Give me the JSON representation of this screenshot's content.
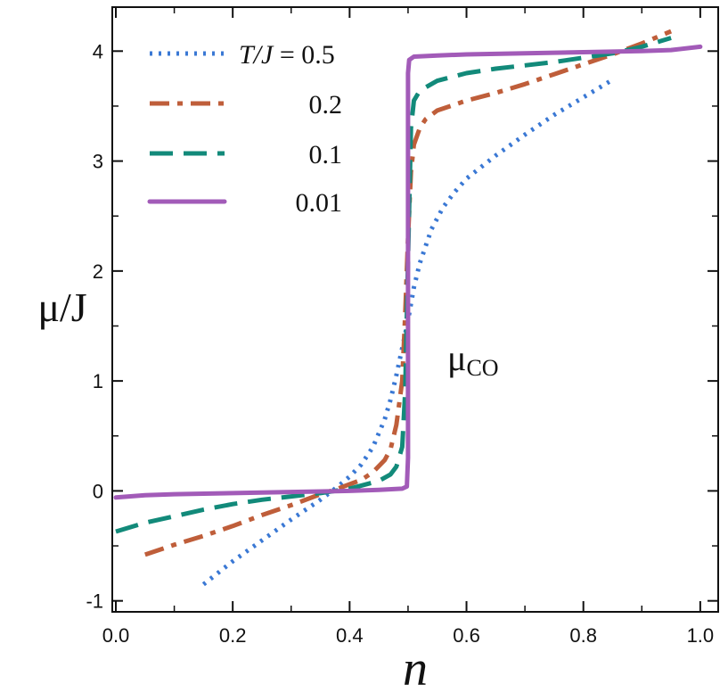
{
  "chart_data": {
    "type": "line",
    "title": "",
    "xlabel": "n",
    "ylabel": "μ/J",
    "xlim": [
      0.0,
      1.0
    ],
    "ylim": [
      -1.1,
      4.4
    ],
    "xticks": [
      0.0,
      0.2,
      0.4,
      0.6,
      0.8,
      1.0
    ],
    "xtick_labels": [
      "0.0",
      "0.2",
      "0.4",
      "0.6",
      "0.8",
      "1.0"
    ],
    "yticks": [
      -1,
      0,
      1,
      2,
      3,
      4
    ],
    "ytick_labels": [
      "-1",
      "0",
      "1",
      "2",
      "3",
      "4"
    ],
    "grid": false,
    "legend_position": "top-left",
    "legend_title": "T/J = ",
    "annotation": {
      "main": "μ",
      "sub": "CO"
    },
    "series": [
      {
        "name": "0.5",
        "color": "#3a78d4",
        "style": "dotted",
        "x": [
          0.15,
          0.2,
          0.25,
          0.3,
          0.35,
          0.38,
          0.4,
          0.42,
          0.44,
          0.46,
          0.47,
          0.48,
          0.49,
          0.5,
          0.51,
          0.52,
          0.54,
          0.56,
          0.58,
          0.6,
          0.65,
          0.7,
          0.75,
          0.8,
          0.85
        ],
        "values": [
          -0.85,
          -0.64,
          -0.45,
          -0.26,
          -0.08,
          0.04,
          0.13,
          0.24,
          0.4,
          0.65,
          0.83,
          1.05,
          1.3,
          1.55,
          1.85,
          2.07,
          2.38,
          2.58,
          2.72,
          2.84,
          3.05,
          3.24,
          3.42,
          3.58,
          3.74
        ]
      },
      {
        "name": "0.2",
        "color": "#bf5e3a",
        "style": "dashdot",
        "x": [
          0.05,
          0.1,
          0.15,
          0.2,
          0.25,
          0.3,
          0.35,
          0.38,
          0.4,
          0.42,
          0.44,
          0.46,
          0.47,
          0.48,
          0.49,
          0.495,
          0.5,
          0.505,
          0.51,
          0.52,
          0.53,
          0.55,
          0.6,
          0.65,
          0.7,
          0.75,
          0.8,
          0.85,
          0.9,
          0.95
        ],
        "values": [
          -0.58,
          -0.49,
          -0.41,
          -0.32,
          -0.22,
          -0.13,
          -0.03,
          0.02,
          0.06,
          0.1,
          0.17,
          0.28,
          0.38,
          0.6,
          1.0,
          1.6,
          2.3,
          2.9,
          3.15,
          3.3,
          3.38,
          3.46,
          3.55,
          3.62,
          3.7,
          3.79,
          3.88,
          3.97,
          4.07,
          4.18
        ]
      },
      {
        "name": "0.1",
        "color": "#128a7a",
        "style": "dashed",
        "x": [
          0.0,
          0.05,
          0.1,
          0.15,
          0.2,
          0.25,
          0.3,
          0.35,
          0.4,
          0.45,
          0.47,
          0.48,
          0.49,
          0.495,
          0.5,
          0.505,
          0.51,
          0.52,
          0.55,
          0.6,
          0.65,
          0.7,
          0.75,
          0.8,
          0.85,
          0.9,
          0.95
        ],
        "values": [
          -0.37,
          -0.29,
          -0.23,
          -0.17,
          -0.12,
          -0.08,
          -0.05,
          -0.02,
          0.02,
          0.09,
          0.15,
          0.22,
          0.4,
          0.9,
          2.1,
          3.3,
          3.55,
          3.64,
          3.73,
          3.8,
          3.84,
          3.87,
          3.9,
          3.94,
          3.98,
          4.04,
          4.12
        ]
      },
      {
        "name": "0.01",
        "color": "#a25bb8",
        "style": "solid",
        "x": [
          0.0,
          0.05,
          0.1,
          0.2,
          0.3,
          0.4,
          0.45,
          0.49,
          0.498,
          0.5,
          0.5,
          0.502,
          0.51,
          0.55,
          0.6,
          0.7,
          0.8,
          0.9,
          0.95,
          1.0
        ],
        "values": [
          -0.06,
          -0.04,
          -0.03,
          -0.02,
          -0.01,
          0.0,
          0.01,
          0.02,
          0.04,
          0.3,
          3.8,
          3.92,
          3.95,
          3.96,
          3.97,
          3.98,
          3.99,
          4.0,
          4.01,
          4.04
        ]
      }
    ]
  }
}
